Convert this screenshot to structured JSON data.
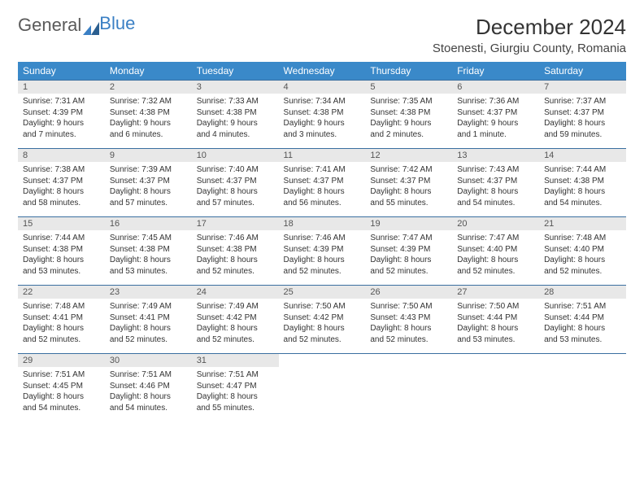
{
  "brand": {
    "part1": "General",
    "part2": "Blue"
  },
  "title": "December 2024",
  "location": "Stoenesti, Giurgiu County, Romania",
  "colors": {
    "header_bg": "#3a89c9",
    "header_fg": "#ffffff",
    "daynum_bg": "#e8e8e8",
    "border": "#3a6fa0",
    "text": "#333333",
    "brand_gray": "#5a5a5a",
    "brand_blue": "#3a7fc4"
  },
  "weekdays": [
    "Sunday",
    "Monday",
    "Tuesday",
    "Wednesday",
    "Thursday",
    "Friday",
    "Saturday"
  ],
  "weeks": [
    [
      {
        "d": "1",
        "sr": "Sunrise: 7:31 AM",
        "ss": "Sunset: 4:39 PM",
        "dl1": "Daylight: 9 hours",
        "dl2": "and 7 minutes."
      },
      {
        "d": "2",
        "sr": "Sunrise: 7:32 AM",
        "ss": "Sunset: 4:38 PM",
        "dl1": "Daylight: 9 hours",
        "dl2": "and 6 minutes."
      },
      {
        "d": "3",
        "sr": "Sunrise: 7:33 AM",
        "ss": "Sunset: 4:38 PM",
        "dl1": "Daylight: 9 hours",
        "dl2": "and 4 minutes."
      },
      {
        "d": "4",
        "sr": "Sunrise: 7:34 AM",
        "ss": "Sunset: 4:38 PM",
        "dl1": "Daylight: 9 hours",
        "dl2": "and 3 minutes."
      },
      {
        "d": "5",
        "sr": "Sunrise: 7:35 AM",
        "ss": "Sunset: 4:38 PM",
        "dl1": "Daylight: 9 hours",
        "dl2": "and 2 minutes."
      },
      {
        "d": "6",
        "sr": "Sunrise: 7:36 AM",
        "ss": "Sunset: 4:37 PM",
        "dl1": "Daylight: 9 hours",
        "dl2": "and 1 minute."
      },
      {
        "d": "7",
        "sr": "Sunrise: 7:37 AM",
        "ss": "Sunset: 4:37 PM",
        "dl1": "Daylight: 8 hours",
        "dl2": "and 59 minutes."
      }
    ],
    [
      {
        "d": "8",
        "sr": "Sunrise: 7:38 AM",
        "ss": "Sunset: 4:37 PM",
        "dl1": "Daylight: 8 hours",
        "dl2": "and 58 minutes."
      },
      {
        "d": "9",
        "sr": "Sunrise: 7:39 AM",
        "ss": "Sunset: 4:37 PM",
        "dl1": "Daylight: 8 hours",
        "dl2": "and 57 minutes."
      },
      {
        "d": "10",
        "sr": "Sunrise: 7:40 AM",
        "ss": "Sunset: 4:37 PM",
        "dl1": "Daylight: 8 hours",
        "dl2": "and 57 minutes."
      },
      {
        "d": "11",
        "sr": "Sunrise: 7:41 AM",
        "ss": "Sunset: 4:37 PM",
        "dl1": "Daylight: 8 hours",
        "dl2": "and 56 minutes."
      },
      {
        "d": "12",
        "sr": "Sunrise: 7:42 AM",
        "ss": "Sunset: 4:37 PM",
        "dl1": "Daylight: 8 hours",
        "dl2": "and 55 minutes."
      },
      {
        "d": "13",
        "sr": "Sunrise: 7:43 AM",
        "ss": "Sunset: 4:37 PM",
        "dl1": "Daylight: 8 hours",
        "dl2": "and 54 minutes."
      },
      {
        "d": "14",
        "sr": "Sunrise: 7:44 AM",
        "ss": "Sunset: 4:38 PM",
        "dl1": "Daylight: 8 hours",
        "dl2": "and 54 minutes."
      }
    ],
    [
      {
        "d": "15",
        "sr": "Sunrise: 7:44 AM",
        "ss": "Sunset: 4:38 PM",
        "dl1": "Daylight: 8 hours",
        "dl2": "and 53 minutes."
      },
      {
        "d": "16",
        "sr": "Sunrise: 7:45 AM",
        "ss": "Sunset: 4:38 PM",
        "dl1": "Daylight: 8 hours",
        "dl2": "and 53 minutes."
      },
      {
        "d": "17",
        "sr": "Sunrise: 7:46 AM",
        "ss": "Sunset: 4:38 PM",
        "dl1": "Daylight: 8 hours",
        "dl2": "and 52 minutes."
      },
      {
        "d": "18",
        "sr": "Sunrise: 7:46 AM",
        "ss": "Sunset: 4:39 PM",
        "dl1": "Daylight: 8 hours",
        "dl2": "and 52 minutes."
      },
      {
        "d": "19",
        "sr": "Sunrise: 7:47 AM",
        "ss": "Sunset: 4:39 PM",
        "dl1": "Daylight: 8 hours",
        "dl2": "and 52 minutes."
      },
      {
        "d": "20",
        "sr": "Sunrise: 7:47 AM",
        "ss": "Sunset: 4:40 PM",
        "dl1": "Daylight: 8 hours",
        "dl2": "and 52 minutes."
      },
      {
        "d": "21",
        "sr": "Sunrise: 7:48 AM",
        "ss": "Sunset: 4:40 PM",
        "dl1": "Daylight: 8 hours",
        "dl2": "and 52 minutes."
      }
    ],
    [
      {
        "d": "22",
        "sr": "Sunrise: 7:48 AM",
        "ss": "Sunset: 4:41 PM",
        "dl1": "Daylight: 8 hours",
        "dl2": "and 52 minutes."
      },
      {
        "d": "23",
        "sr": "Sunrise: 7:49 AM",
        "ss": "Sunset: 4:41 PM",
        "dl1": "Daylight: 8 hours",
        "dl2": "and 52 minutes."
      },
      {
        "d": "24",
        "sr": "Sunrise: 7:49 AM",
        "ss": "Sunset: 4:42 PM",
        "dl1": "Daylight: 8 hours",
        "dl2": "and 52 minutes."
      },
      {
        "d": "25",
        "sr": "Sunrise: 7:50 AM",
        "ss": "Sunset: 4:42 PM",
        "dl1": "Daylight: 8 hours",
        "dl2": "and 52 minutes."
      },
      {
        "d": "26",
        "sr": "Sunrise: 7:50 AM",
        "ss": "Sunset: 4:43 PM",
        "dl1": "Daylight: 8 hours",
        "dl2": "and 52 minutes."
      },
      {
        "d": "27",
        "sr": "Sunrise: 7:50 AM",
        "ss": "Sunset: 4:44 PM",
        "dl1": "Daylight: 8 hours",
        "dl2": "and 53 minutes."
      },
      {
        "d": "28",
        "sr": "Sunrise: 7:51 AM",
        "ss": "Sunset: 4:44 PM",
        "dl1": "Daylight: 8 hours",
        "dl2": "and 53 minutes."
      }
    ],
    [
      {
        "d": "29",
        "sr": "Sunrise: 7:51 AM",
        "ss": "Sunset: 4:45 PM",
        "dl1": "Daylight: 8 hours",
        "dl2": "and 54 minutes."
      },
      {
        "d": "30",
        "sr": "Sunrise: 7:51 AM",
        "ss": "Sunset: 4:46 PM",
        "dl1": "Daylight: 8 hours",
        "dl2": "and 54 minutes."
      },
      {
        "d": "31",
        "sr": "Sunrise: 7:51 AM",
        "ss": "Sunset: 4:47 PM",
        "dl1": "Daylight: 8 hours",
        "dl2": "and 55 minutes."
      },
      null,
      null,
      null,
      null
    ]
  ]
}
